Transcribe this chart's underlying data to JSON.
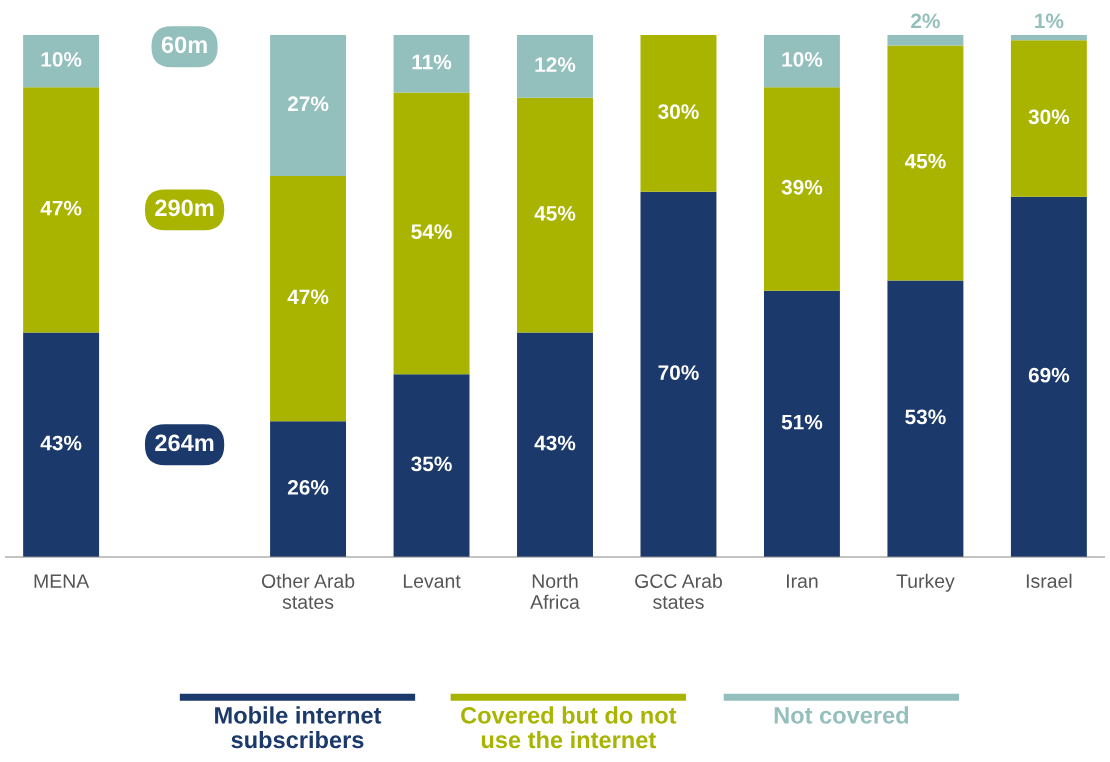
{
  "chart_data": {
    "type": "bar",
    "stacked": true,
    "categories": [
      "MENA",
      null,
      "Other Arab\nstates",
      "Levant",
      "North\nAfrica",
      "GCC Arab\nstates",
      "Iran",
      "Turkey",
      "Israel"
    ],
    "series": [
      {
        "name": "Mobile internet\nsubscribers",
        "color": "#1b3a6b",
        "values": [
          43,
          null,
          26,
          35,
          43,
          70,
          51,
          53,
          69
        ],
        "value_labels": [
          "43%",
          null,
          "26%",
          "35%",
          "43%",
          "70%",
          "51%",
          "53%",
          "69%"
        ]
      },
      {
        "name": "Covered but do not\nuse the internet",
        "color": "#a8b400",
        "values": [
          47,
          null,
          47,
          54,
          45,
          30,
          39,
          45,
          30
        ],
        "value_labels": [
          "47%",
          null,
          "47%",
          "54%",
          "45%",
          "30%",
          "39%",
          "45%",
          "30%"
        ]
      },
      {
        "name": "Not covered",
        "color": "#93bfbd",
        "values": [
          10,
          null,
          27,
          11,
          12,
          null,
          10,
          2,
          1
        ],
        "value_labels": [
          "10%",
          null,
          "27%",
          "11%",
          "12%",
          null,
          "10%",
          "2%",
          "1%"
        ]
      }
    ],
    "tick_labels": "x",
    "grid": false,
    "legend": "bottom",
    "annotations": [
      "60m",
      "290m",
      "264m"
    ]
  }
}
